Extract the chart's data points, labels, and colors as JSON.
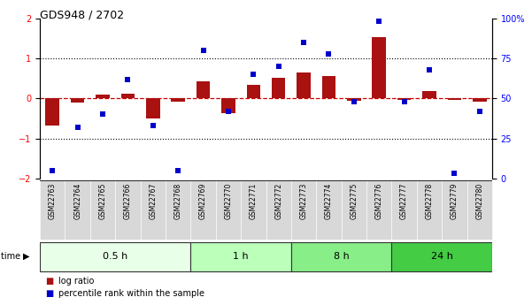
{
  "title": "GDS948 / 2702",
  "samples": [
    "GSM22763",
    "GSM22764",
    "GSM22765",
    "GSM22766",
    "GSM22767",
    "GSM22768",
    "GSM22769",
    "GSM22770",
    "GSM22771",
    "GSM22772",
    "GSM22773",
    "GSM22774",
    "GSM22775",
    "GSM22776",
    "GSM22777",
    "GSM22778",
    "GSM22779",
    "GSM22780"
  ],
  "log_ratio": [
    -0.68,
    -0.1,
    0.1,
    0.12,
    -0.5,
    -0.08,
    0.42,
    -0.38,
    0.33,
    0.52,
    0.65,
    0.55,
    -0.05,
    1.52,
    -0.04,
    0.18,
    -0.04,
    -0.08
  ],
  "pct_rank": [
    5,
    32,
    40,
    62,
    33,
    5,
    80,
    42,
    65,
    70,
    85,
    78,
    48,
    98,
    48,
    68,
    3,
    42
  ],
  "groups": [
    {
      "label": "0.5 h",
      "start": 0,
      "end": 6,
      "color": "#e8ffe8"
    },
    {
      "label": "1 h",
      "start": 6,
      "end": 10,
      "color": "#bbffbb"
    },
    {
      "label": "8 h",
      "start": 10,
      "end": 14,
      "color": "#88ee88"
    },
    {
      "label": "24 h",
      "start": 14,
      "end": 18,
      "color": "#44cc44"
    }
  ],
  "bar_color": "#aa1111",
  "dot_color": "#0000cc",
  "ylim_left": [
    -2,
    2
  ],
  "ylim_right": [
    0,
    100
  ],
  "yticks_left": [
    -2,
    -1,
    0,
    1,
    2
  ],
  "yticks_right": [
    0,
    25,
    50,
    75,
    100
  ],
  "yticklabels_right": [
    "0",
    "25",
    "50",
    "75",
    "100%"
  ],
  "hline_color": "#cc0000",
  "dotted_color": "#000000",
  "bg_color": "#ffffff",
  "title_fontsize": 9,
  "axis_fontsize": 7,
  "group_fontsize": 8,
  "sample_fontsize": 5.5
}
